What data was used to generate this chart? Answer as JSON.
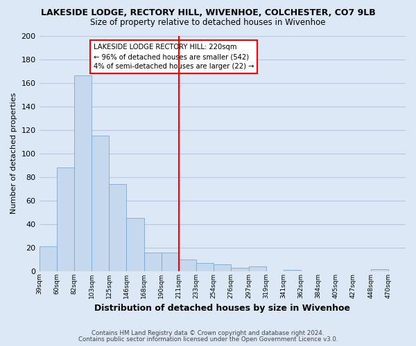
{
  "title": "LAKESIDE LODGE, RECTORY HILL, WIVENHOE, COLCHESTER, CO7 9LB",
  "subtitle": "Size of property relative to detached houses in Wivenhoe",
  "xlabel": "Distribution of detached houses by size in Wivenhoe",
  "ylabel": "Number of detached properties",
  "bar_labels": [
    "39sqm",
    "60sqm",
    "82sqm",
    "103sqm",
    "125sqm",
    "146sqm",
    "168sqm",
    "190sqm",
    "211sqm",
    "233sqm",
    "254sqm",
    "276sqm",
    "297sqm",
    "319sqm",
    "341sqm",
    "362sqm",
    "384sqm",
    "405sqm",
    "427sqm",
    "448sqm",
    "470sqm"
  ],
  "bar_values": [
    21,
    88,
    166,
    115,
    74,
    45,
    16,
    16,
    10,
    7,
    6,
    3,
    4,
    0,
    1,
    0,
    0,
    0,
    0,
    2,
    0
  ],
  "bar_color": "#c5d8ed",
  "bar_edge_color": "#7aa8d4",
  "reference_line_index": 8,
  "annotation_title": "LAKESIDE LODGE RECTORY HILL: 220sqm",
  "annotation_line1": "← 96% of detached houses are smaller (542)",
  "annotation_line2": "4% of semi-detached houses are larger (22) →",
  "ylim": [
    0,
    200
  ],
  "yticks": [
    0,
    20,
    40,
    60,
    80,
    100,
    120,
    140,
    160,
    180,
    200
  ],
  "footnote1": "Contains HM Land Registry data © Crown copyright and database right 2024.",
  "footnote2": "Contains public sector information licensed under the Open Government Licence v3.0.",
  "bg_color": "#dce8f5",
  "plot_bg_color": "#dce8f5",
  "grid_color": "#b8c8dc"
}
